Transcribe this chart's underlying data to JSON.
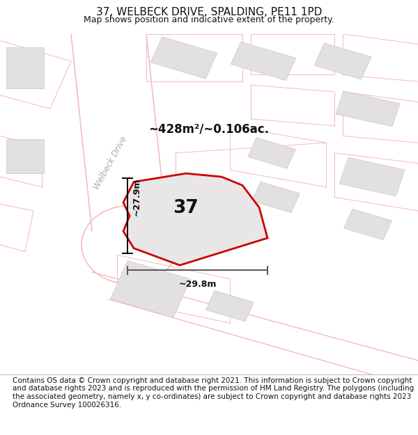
{
  "title": "37, WELBECK DRIVE, SPALDING, PE11 1PD",
  "subtitle": "Map shows position and indicative extent of the property.",
  "footer": "Contains OS data © Crown copyright and database right 2021. This information is subject to Crown copyright and database rights 2023 and is reproduced with the permission of HM Land Registry. The polygons (including the associated geometry, namely x, y co-ordinates) are subject to Crown copyright and database rights 2023 Ordnance Survey 100026316.",
  "area_text": "~428m²/~0.106ac.",
  "dim_vertical": "~27.9m",
  "dim_horizontal": "~29.8m",
  "street_label": "Welbeck Drive",
  "plot_number": "37",
  "map_bg": "#f5f4f4",
  "road_white": "#ffffff",
  "road_outline": "#f5b8b8",
  "building_fill": "#e2e0e0",
  "building_edge": "#d0cccc",
  "plot_edge_color": "#cc0000",
  "plot_fill": "#e8e6e6",
  "title_fontsize": 11,
  "subtitle_fontsize": 9,
  "footer_fontsize": 7.5
}
